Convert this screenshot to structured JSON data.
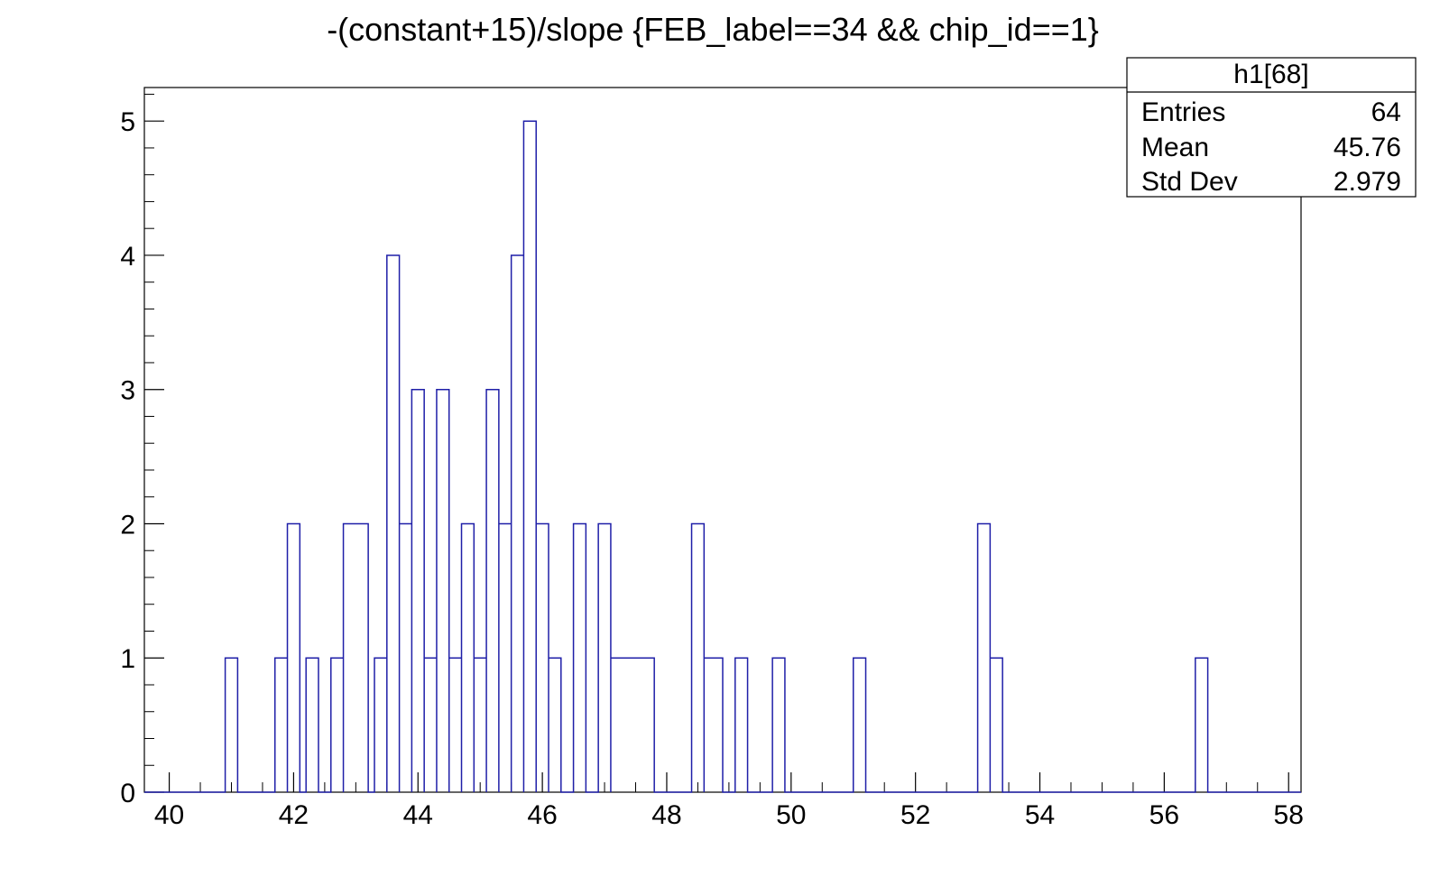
{
  "chart_data": {
    "type": "histogram",
    "title": "-(constant+15)/slope {FEB_label==34 && chip_id==1}",
    "xlabel": "",
    "ylabel": "",
    "xlim": [
      39.6,
      58.2
    ],
    "ylim": [
      0,
      5.25
    ],
    "x_ticks": [
      40,
      42,
      44,
      46,
      48,
      50,
      52,
      54,
      56,
      58
    ],
    "y_ticks": [
      0,
      1,
      2,
      3,
      4,
      5
    ],
    "grid": false,
    "line_color": "#1f1fa8",
    "bins": [
      {
        "x0": 40.9,
        "x1": 41.1,
        "count": 1
      },
      {
        "x0": 41.7,
        "x1": 41.9,
        "count": 1
      },
      {
        "x0": 41.9,
        "x1": 42.1,
        "count": 2
      },
      {
        "x0": 42.2,
        "x1": 42.4,
        "count": 1
      },
      {
        "x0": 42.6,
        "x1": 42.8,
        "count": 1
      },
      {
        "x0": 42.8,
        "x1": 43.2,
        "count": 2
      },
      {
        "x0": 43.3,
        "x1": 43.5,
        "count": 1
      },
      {
        "x0": 43.5,
        "x1": 43.7,
        "count": 4
      },
      {
        "x0": 43.7,
        "x1": 43.9,
        "count": 2
      },
      {
        "x0": 43.9,
        "x1": 44.1,
        "count": 3
      },
      {
        "x0": 44.1,
        "x1": 44.3,
        "count": 1
      },
      {
        "x0": 44.3,
        "x1": 44.5,
        "count": 3
      },
      {
        "x0": 44.5,
        "x1": 44.7,
        "count": 1
      },
      {
        "x0": 44.7,
        "x1": 44.9,
        "count": 2
      },
      {
        "x0": 44.9,
        "x1": 45.1,
        "count": 1
      },
      {
        "x0": 45.1,
        "x1": 45.3,
        "count": 3
      },
      {
        "x0": 45.3,
        "x1": 45.5,
        "count": 2
      },
      {
        "x0": 45.5,
        "x1": 45.7,
        "count": 4
      },
      {
        "x0": 45.7,
        "x1": 45.9,
        "count": 5
      },
      {
        "x0": 45.9,
        "x1": 46.1,
        "count": 2
      },
      {
        "x0": 46.1,
        "x1": 46.3,
        "count": 1
      },
      {
        "x0": 46.5,
        "x1": 46.7,
        "count": 2
      },
      {
        "x0": 46.9,
        "x1": 47.1,
        "count": 2
      },
      {
        "x0": 47.1,
        "x1": 47.8,
        "count": 1
      },
      {
        "x0": 48.4,
        "x1": 48.6,
        "count": 2
      },
      {
        "x0": 48.6,
        "x1": 48.9,
        "count": 1
      },
      {
        "x0": 49.1,
        "x1": 49.3,
        "count": 1
      },
      {
        "x0": 49.7,
        "x1": 49.9,
        "count": 1
      },
      {
        "x0": 51.0,
        "x1": 51.2,
        "count": 1
      },
      {
        "x0": 53.0,
        "x1": 53.2,
        "count": 2
      },
      {
        "x0": 53.2,
        "x1": 53.4,
        "count": 1
      },
      {
        "x0": 56.5,
        "x1": 56.7,
        "count": 1
      }
    ],
    "stats_box": {
      "title": "h1[68]",
      "rows": [
        {
          "label": "Entries",
          "value": "64"
        },
        {
          "label": "Mean",
          "value": "45.76"
        },
        {
          "label": "Std Dev",
          "value": "2.979"
        }
      ]
    }
  }
}
